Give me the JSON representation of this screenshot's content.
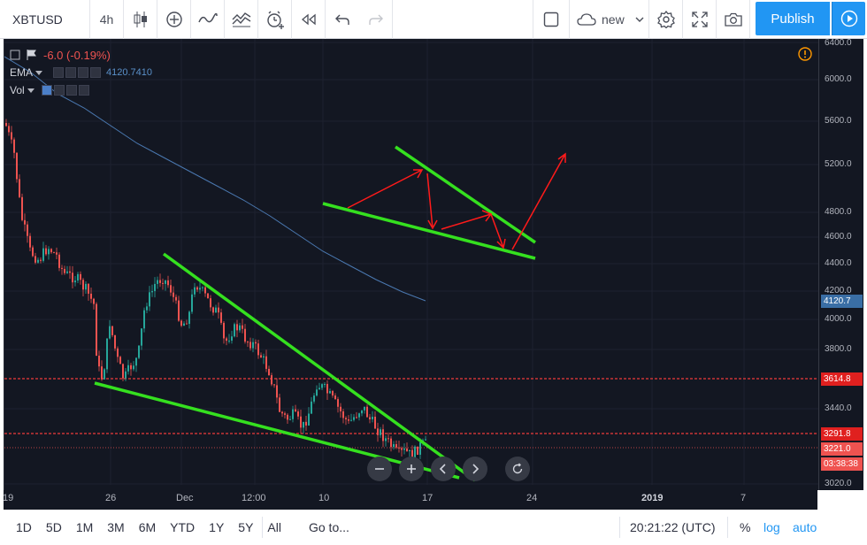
{
  "toolbar": {
    "symbol": "XBTUSD",
    "interval": "4h",
    "cloud_label": "new",
    "publish_label": "Publish",
    "icons": [
      "candles-icon",
      "add-indicator-icon",
      "compare-icon",
      "indicators-icon",
      "alert-icon",
      "replay-icon",
      "undo-icon",
      "redo-icon",
      "layout-icon",
      "cloud-icon",
      "chevron-down-icon",
      "settings-icon",
      "fullscreen-icon",
      "camera-icon",
      "play-icon"
    ]
  },
  "legend": {
    "change": "-6.0 (-0.19%)",
    "ema_name": "EMA",
    "ema_value": "4120.7410",
    "vol_name": "Vol"
  },
  "price_axis": {
    "labels": [
      "6400.0",
      "6000.0",
      "5600.0",
      "5200.0",
      "4800.0",
      "4600.0",
      "4400.0",
      "4200.0",
      "4000.0",
      "3800.0",
      "3614.8",
      "3440.0",
      "3291.8",
      "3221.0",
      "3020.0"
    ],
    "ema_tag": "4120.7",
    "level1_tag": "3614.8",
    "level2_tag": "3291.8",
    "last_tag": "3221.0",
    "countdown": "03:38:38"
  },
  "time_axis": {
    "labels": [
      "19",
      "26",
      "Dec",
      "12:00",
      "10",
      "17",
      "24",
      "2019",
      "7"
    ]
  },
  "bottombar": {
    "ranges": [
      "1D",
      "5D",
      "1M",
      "3M",
      "6M",
      "YTD",
      "1Y",
      "5Y",
      "All"
    ],
    "goto": "Go to...",
    "clock": "20:21:22 (UTC)",
    "percent": "%",
    "log": "log",
    "auto": "auto"
  },
  "colors": {
    "background": "#131722",
    "up": "#26a69a",
    "down": "#ef5350",
    "ema": "#4a78b0",
    "trendline": "#35e01f",
    "arrow": "#ff1a1a",
    "accent": "#2196f3"
  }
}
